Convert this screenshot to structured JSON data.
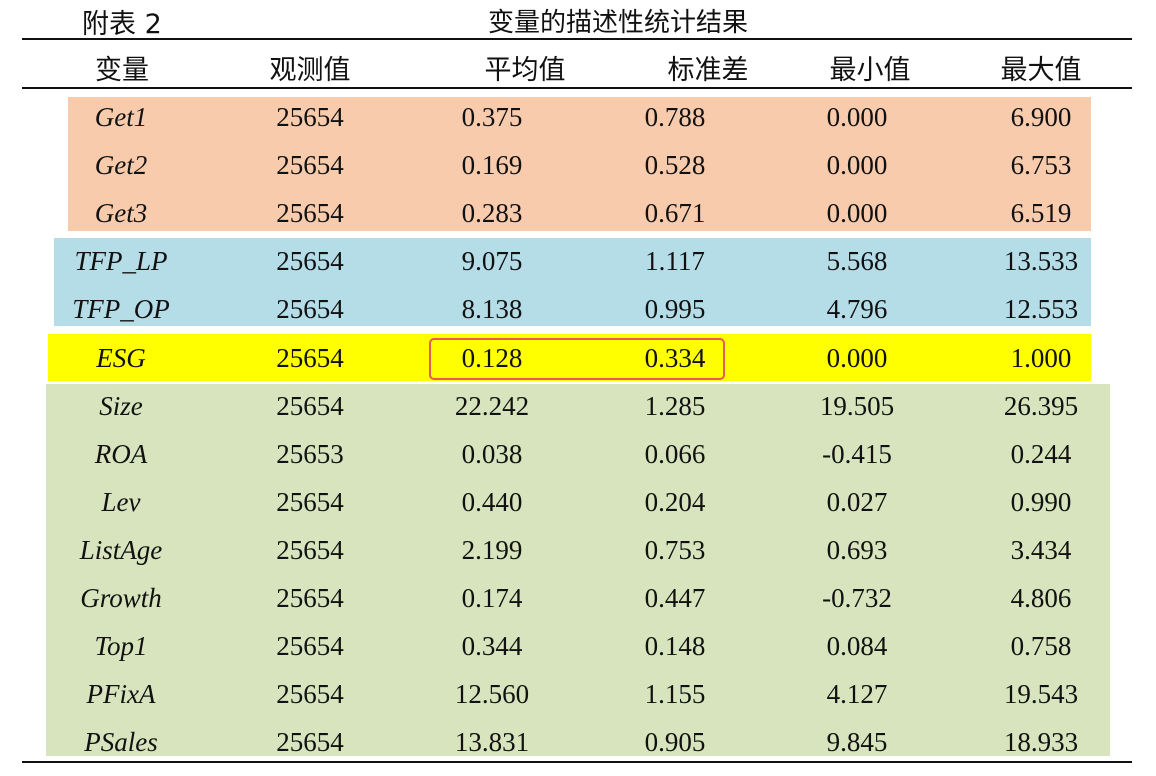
{
  "caption": {
    "label": "附表 2",
    "title": "变量的描述性统计结果"
  },
  "headers": [
    "变量",
    "观测值",
    "平均值",
    "标准差",
    "最小值",
    "最大值"
  ],
  "rows": [
    [
      "Get1",
      "25654",
      "0.375",
      "0.788",
      "0.000",
      "6.900"
    ],
    [
      "Get2",
      "25654",
      "0.169",
      "0.528",
      "0.000",
      "6.753"
    ],
    [
      "Get3",
      "25654",
      "0.283",
      "0.671",
      "0.000",
      "6.519"
    ],
    [
      "TFP_LP",
      "25654",
      "9.075",
      "1.117",
      "5.568",
      "13.533"
    ],
    [
      "TFP_OP",
      "25654",
      "8.138",
      "0.995",
      "4.796",
      "12.553"
    ],
    [
      "ESG",
      "25654",
      "0.128",
      "0.334",
      "0.000",
      "1.000"
    ],
    [
      "Size",
      "25654",
      "22.242",
      "1.285",
      "19.505",
      "26.395"
    ],
    [
      "ROA",
      "25653",
      "0.038",
      "0.066",
      "-0.415",
      "0.244"
    ],
    [
      "Lev",
      "25654",
      "0.440",
      "0.204",
      "0.027",
      "0.990"
    ],
    [
      "ListAge",
      "25654",
      "2.199",
      "0.753",
      "0.693",
      "3.434"
    ],
    [
      "Growth",
      "25654",
      "0.174",
      "0.447",
      "-0.732",
      "4.806"
    ],
    [
      "Top1",
      "25654",
      "0.344",
      "0.148",
      "0.084",
      "0.758"
    ],
    [
      "PFixA",
      "25654",
      "12.560",
      "1.155",
      "4.127",
      "19.543"
    ],
    [
      "PSales",
      "25654",
      "13.831",
      "0.905",
      "9.845",
      "18.933"
    ]
  ],
  "band_colors": {
    "dependent": "#f8cbad",
    "mediator": "#b4dde8",
    "key": "#ffff00",
    "controls": "#d7e4bd",
    "highlight_border": "#e85a5a"
  }
}
